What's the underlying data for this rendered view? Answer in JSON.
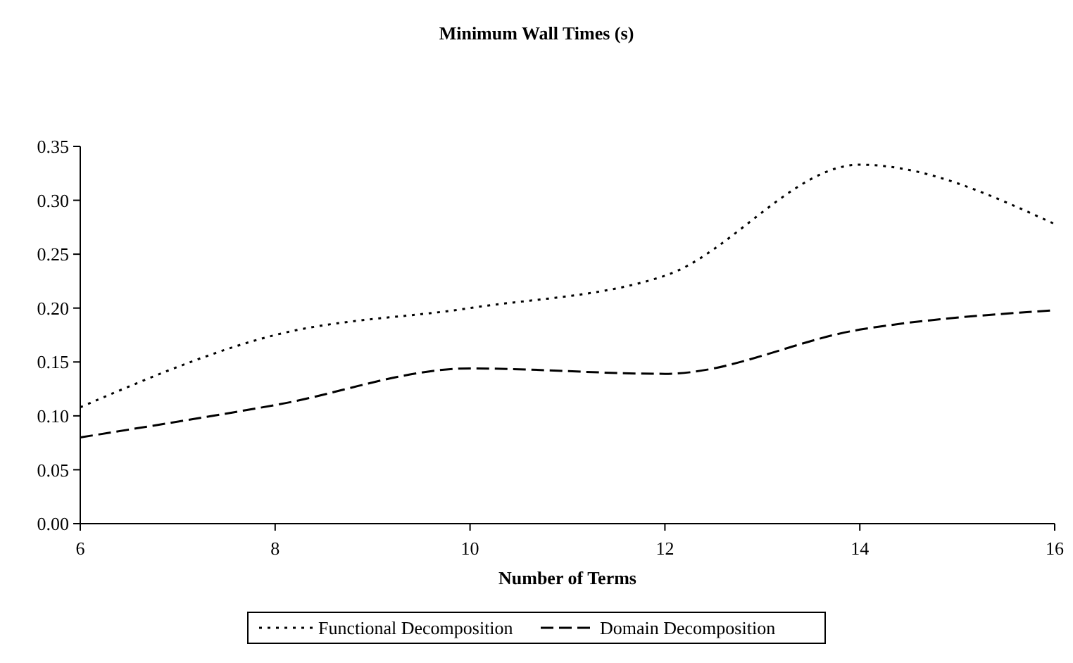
{
  "chart_data": {
    "type": "line",
    "title": "Minimum Wall Times (s)",
    "xlabel": "Number of Terms",
    "x": [
      6,
      8,
      10,
      12,
      14,
      16
    ],
    "xlim": [
      6,
      16
    ],
    "xticks": [
      6,
      8,
      10,
      12,
      14,
      16
    ],
    "ylim": [
      0,
      0.35
    ],
    "yticks": [
      {
        "value": 0,
        "label": "0.00"
      },
      {
        "value": 0.05,
        "label": "0.05"
      },
      {
        "value": 0.1,
        "label": "0.10"
      },
      {
        "value": 0.15,
        "label": "0.15"
      },
      {
        "value": 0.2,
        "label": "0.20"
      },
      {
        "value": 0.25,
        "label": "0.25"
      },
      {
        "value": 0.3,
        "label": "0.30"
      },
      {
        "value": 0.35,
        "label": "0.35"
      }
    ],
    "grid": false,
    "legend": "bottom",
    "marker": "none",
    "series": [
      {
        "name": "Functional Decomposition",
        "color": "#000000",
        "line_style": "dotted",
        "values": [
          0.108,
          0.175,
          0.2,
          0.23,
          0.333,
          0.278
        ]
      },
      {
        "name": "Domain Decomposition",
        "color": "#000000",
        "line_style": "dashed",
        "values": [
          0.08,
          0.11,
          0.144,
          0.139,
          0.18,
          0.198
        ]
      }
    ]
  }
}
